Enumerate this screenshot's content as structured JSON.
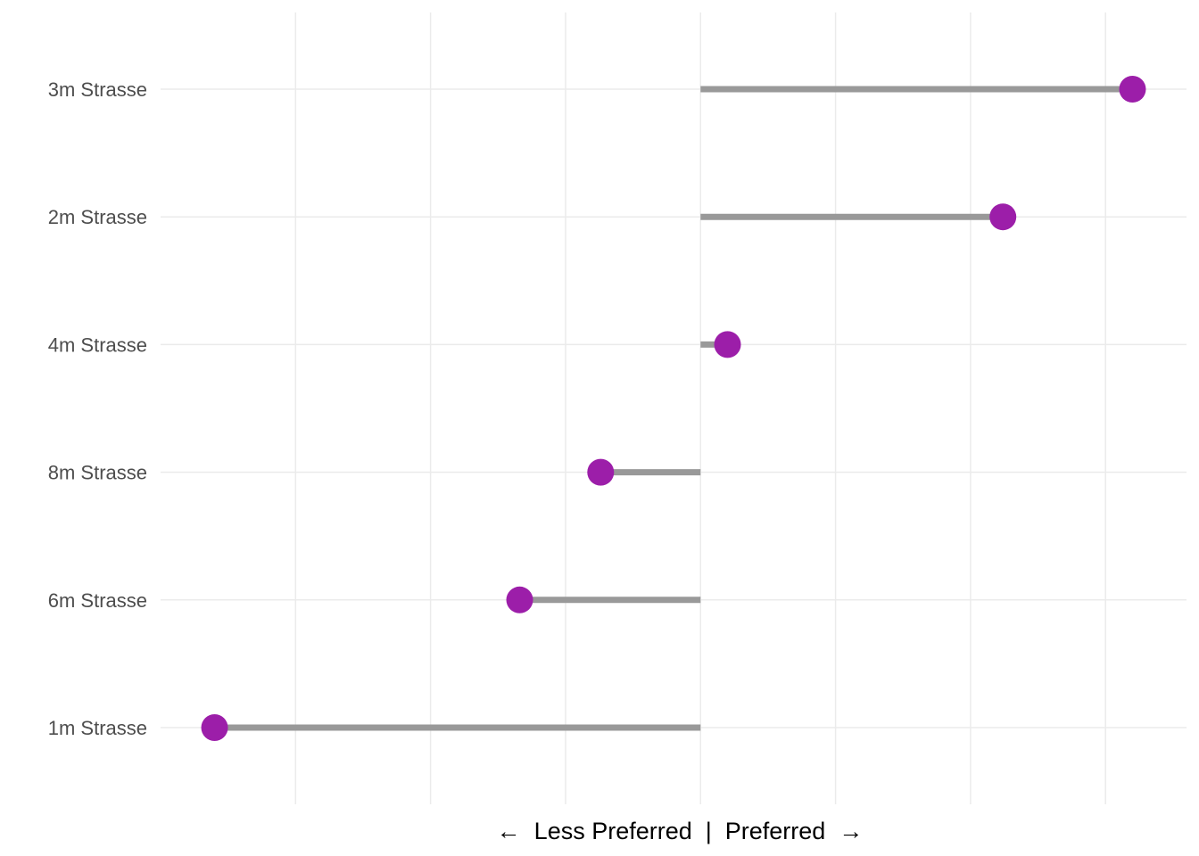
{
  "chart_data": {
    "type": "lollipop",
    "orientation": "horizontal",
    "title": "",
    "xlabel": "←  Less Preferred  |  Preferred  →",
    "ylabel": "",
    "categories": [
      "3m Strasse",
      "2m Strasse",
      "4m Strasse",
      "8m Strasse",
      "6m Strasse",
      "1m Strasse"
    ],
    "values": [
      1.6,
      1.12,
      0.1,
      -0.37,
      -0.67,
      -1.8
    ],
    "baseline": 0,
    "xlim": [
      -2.0,
      1.8
    ],
    "x_gridlines": [
      -1.5,
      -1.0,
      -0.5,
      0,
      0.5,
      1.0,
      1.5
    ],
    "x_tick_labels_visible": false,
    "grid": true,
    "legend": "none",
    "colors": {
      "point": "#9c1ea9",
      "stem": "#999999",
      "grid": "#ebebeb"
    }
  }
}
